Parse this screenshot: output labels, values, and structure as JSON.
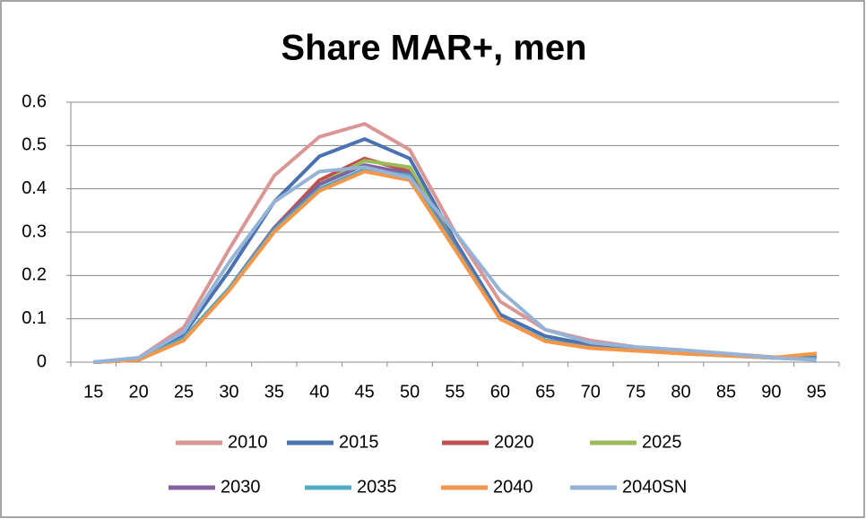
{
  "chart_data": {
    "type": "line",
    "title": "Share MAR+, men",
    "categories": [
      "15",
      "20",
      "25",
      "30",
      "35",
      "40",
      "45",
      "50",
      "55",
      "60",
      "65",
      "70",
      "75",
      "80",
      "85",
      "90",
      "95"
    ],
    "ylim": [
      0,
      0.6
    ],
    "yticks": [
      0,
      0.1,
      0.2,
      0.3,
      0.4,
      0.5,
      0.6
    ],
    "grid": true,
    "series": [
      {
        "name": "2010",
        "color": "#d99694",
        "values": [
          0,
          0.01,
          0.08,
          0.26,
          0.43,
          0.52,
          0.55,
          0.49,
          0.3,
          0.14,
          0.075,
          0.05,
          0.035,
          0.028,
          0.02,
          0.012,
          0.01
        ]
      },
      {
        "name": "2015",
        "color": "#4a72b0",
        "values": [
          0,
          0.005,
          0.065,
          0.21,
          0.37,
          0.475,
          0.515,
          0.47,
          0.28,
          0.11,
          0.06,
          0.04,
          0.03,
          0.025,
          0.018,
          0.01,
          0.015
        ]
      },
      {
        "name": "2020",
        "color": "#c0504d",
        "values": [
          0,
          0.005,
          0.055,
          0.17,
          0.31,
          0.42,
          0.47,
          0.44,
          0.27,
          0.1,
          0.05,
          0.035,
          0.028,
          0.022,
          0.016,
          0.01,
          0.012
        ]
      },
      {
        "name": "2025",
        "color": "#9bbb59",
        "values": [
          0,
          0.005,
          0.055,
          0.17,
          0.31,
          0.41,
          0.465,
          0.45,
          0.27,
          0.1,
          0.05,
          0.035,
          0.028,
          0.022,
          0.016,
          0.01,
          0.012
        ]
      },
      {
        "name": "2030",
        "color": "#8064a2",
        "values": [
          0,
          0.005,
          0.055,
          0.17,
          0.31,
          0.41,
          0.455,
          0.435,
          0.27,
          0.1,
          0.05,
          0.035,
          0.028,
          0.022,
          0.016,
          0.01,
          0.01
        ]
      },
      {
        "name": "2035",
        "color": "#4bacc6",
        "values": [
          0,
          0.005,
          0.055,
          0.17,
          0.305,
          0.4,
          0.445,
          0.43,
          0.265,
          0.1,
          0.05,
          0.033,
          0.027,
          0.02,
          0.015,
          0.01,
          0.008
        ]
      },
      {
        "name": "2040",
        "color": "#f79646",
        "values": [
          0,
          0.005,
          0.05,
          0.165,
          0.3,
          0.395,
          0.44,
          0.42,
          0.26,
          0.1,
          0.048,
          0.032,
          0.026,
          0.02,
          0.015,
          0.01,
          0.02
        ]
      },
      {
        "name": "2040SN",
        "color": "#95b3d7",
        "values": [
          0,
          0.01,
          0.07,
          0.23,
          0.37,
          0.44,
          0.45,
          0.425,
          0.3,
          0.165,
          0.075,
          0.045,
          0.035,
          0.028,
          0.02,
          0.01,
          0.005
        ]
      }
    ]
  }
}
